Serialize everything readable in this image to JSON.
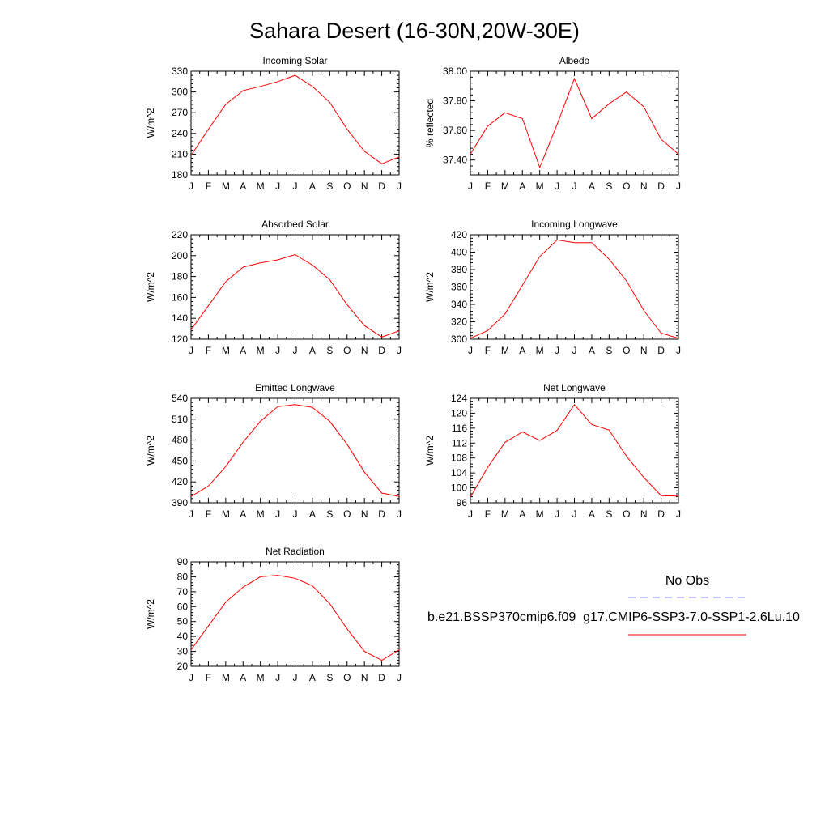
{
  "figure": {
    "title": "Sahara Desert (16-30N,20W-30E)",
    "months": [
      "J",
      "F",
      "M",
      "A",
      "M",
      "J",
      "J",
      "A",
      "S",
      "O",
      "N",
      "D",
      "J"
    ],
    "line_color": "#ff0000",
    "obs_color": "#8080ff"
  },
  "legend": {
    "obs_label": "No Obs",
    "model_label": "b.e21.BSSP370cmip6.f09_g17.CMIP6-SSP3-7.0-SSP1-2.6Lu.10"
  },
  "chart_data": [
    {
      "type": "line",
      "title": "Incoming Solar",
      "ylabel": "W/m^2",
      "ylim": [
        180,
        330
      ],
      "yticks": [
        "180",
        "210",
        "240",
        "270",
        "300",
        "330"
      ],
      "ytick_values": [
        180,
        210,
        240,
        270,
        300,
        330
      ],
      "x": [
        "J",
        "F",
        "M",
        "A",
        "M",
        "J",
        "J",
        "A",
        "S",
        "O",
        "N",
        "D",
        "J"
      ],
      "series": [
        {
          "values": [
            208,
            246,
            282,
            302,
            308,
            315,
            324,
            308,
            285,
            246,
            214,
            196,
            206
          ]
        }
      ]
    },
    {
      "type": "line",
      "title": "Albedo",
      "ylabel": "% reflected",
      "ylim": [
        37.3,
        38.0
      ],
      "yticks": [
        "37.40",
        "37.60",
        "37.80",
        "38.00"
      ],
      "ytick_values": [
        37.4,
        37.6,
        37.8,
        38.0
      ],
      "x": [
        "J",
        "F",
        "M",
        "A",
        "M",
        "J",
        "J",
        "A",
        "S",
        "O",
        "N",
        "D",
        "J"
      ],
      "series": [
        {
          "values": [
            37.44,
            37.63,
            37.72,
            37.68,
            37.35,
            37.64,
            37.95,
            37.68,
            37.78,
            37.86,
            37.76,
            37.54,
            37.44
          ]
        }
      ]
    },
    {
      "type": "line",
      "title": "Absorbed Solar",
      "ylabel": "W/m^2",
      "ylim": [
        120,
        220
      ],
      "yticks": [
        "120",
        "140",
        "160",
        "180",
        "200",
        "220"
      ],
      "ytick_values": [
        120,
        140,
        160,
        180,
        200,
        220
      ],
      "x": [
        "J",
        "F",
        "M",
        "A",
        "M",
        "J",
        "J",
        "A",
        "S",
        "O",
        "N",
        "D",
        "J"
      ],
      "series": [
        {
          "values": [
            129,
            152,
            175,
            189,
            193,
            196,
            201,
            191,
            177,
            153,
            133,
            122,
            128
          ]
        }
      ]
    },
    {
      "type": "line",
      "title": "Incoming Longwave",
      "ylabel": "W/m^2",
      "ylim": [
        300,
        420
      ],
      "yticks": [
        "300",
        "320",
        "340",
        "360",
        "380",
        "400",
        "420"
      ],
      "ytick_values": [
        300,
        320,
        340,
        360,
        380,
        400,
        420
      ],
      "x": [
        "J",
        "F",
        "M",
        "A",
        "M",
        "J",
        "J",
        "A",
        "S",
        "O",
        "N",
        "D",
        "J"
      ],
      "series": [
        {
          "values": [
            301,
            310,
            329,
            362,
            395,
            414,
            411,
            411,
            392,
            367,
            333,
            307,
            301
          ]
        }
      ]
    },
    {
      "type": "line",
      "title": "Emitted Longwave",
      "ylabel": "W/m^2",
      "ylim": [
        390,
        540
      ],
      "yticks": [
        "390",
        "420",
        "450",
        "480",
        "510",
        "540"
      ],
      "ytick_values": [
        390,
        420,
        450,
        480,
        510,
        540
      ],
      "x": [
        "J",
        "F",
        "M",
        "A",
        "M",
        "J",
        "J",
        "A",
        "S",
        "O",
        "N",
        "D",
        "J"
      ],
      "series": [
        {
          "values": [
            399,
            414,
            442,
            477,
            507,
            528,
            531,
            527,
            507,
            474,
            434,
            404,
            399
          ]
        }
      ]
    },
    {
      "type": "line",
      "title": "Net Longwave",
      "ylabel": "W/m^2",
      "ylim": [
        96,
        124
      ],
      "yticks": [
        "96",
        "100",
        "104",
        "108",
        "112",
        "116",
        "120",
        "124"
      ],
      "ytick_values": [
        96,
        100,
        104,
        108,
        112,
        116,
        120,
        124
      ],
      "x": [
        "J",
        "F",
        "M",
        "A",
        "M",
        "J",
        "J",
        "A",
        "S",
        "O",
        "N",
        "D",
        "J"
      ],
      "series": [
        {
          "values": [
            97.5,
            105.5,
            112.2,
            115.0,
            112.7,
            115.4,
            122.3,
            117.0,
            115.5,
            108.5,
            102.8,
            97.9,
            97.8
          ]
        }
      ]
    },
    {
      "type": "line",
      "title": "Net Radiation",
      "ylabel": "W/m^2",
      "ylim": [
        20,
        90
      ],
      "yticks": [
        "20",
        "30",
        "40",
        "50",
        "60",
        "70",
        "80",
        "90"
      ],
      "ytick_values": [
        20,
        30,
        40,
        50,
        60,
        70,
        80,
        90
      ],
      "x": [
        "J",
        "F",
        "M",
        "A",
        "M",
        "J",
        "J",
        "A",
        "S",
        "O",
        "N",
        "D",
        "J"
      ],
      "series": [
        {
          "values": [
            31,
            47,
            63,
            73,
            80,
            81,
            79,
            74,
            62,
            45,
            30,
            24,
            31
          ]
        }
      ]
    }
  ]
}
